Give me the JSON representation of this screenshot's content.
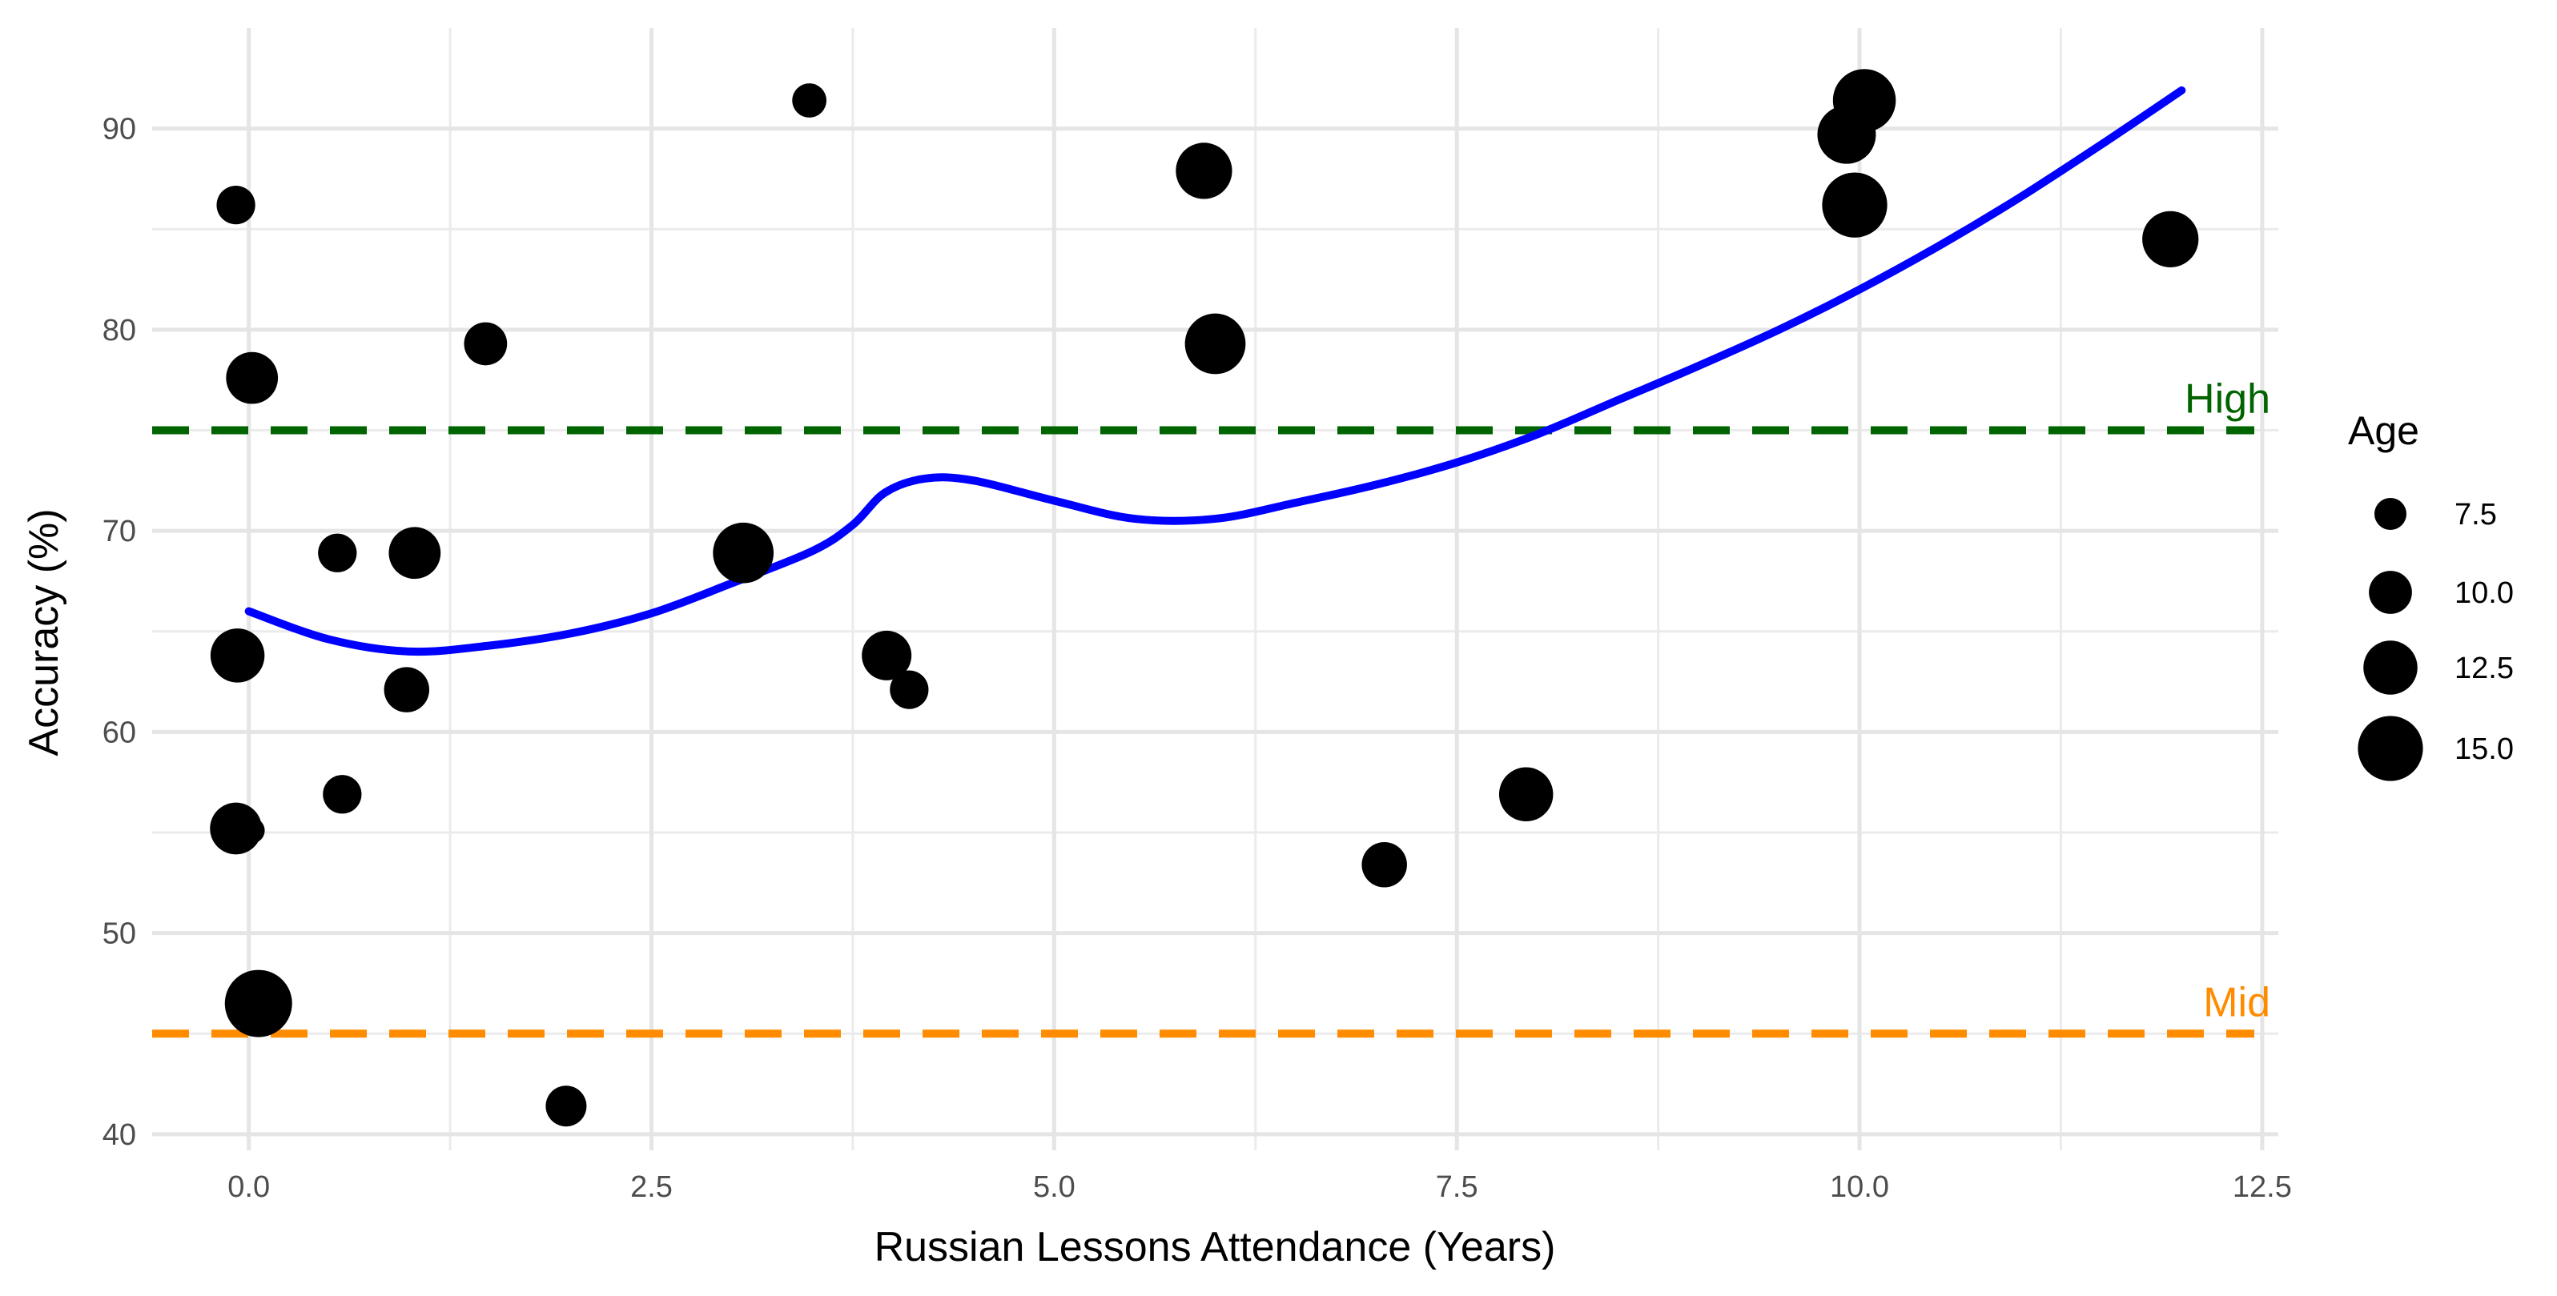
{
  "chart_data": {
    "type": "scatter",
    "title": "",
    "xlabel": "Russian Lessons Attendance (Years)",
    "ylabel": "Accuracy (%)",
    "xlim": [
      -0.6,
      12.6
    ],
    "ylim": [
      39.2,
      95
    ],
    "x_ticks": [
      0.0,
      2.5,
      5.0,
      7.5,
      10.0,
      12.5
    ],
    "x_tick_labels": [
      "0.0",
      "2.5",
      "5.0",
      "7.5",
      "10.0",
      "12.5"
    ],
    "y_ticks": [
      40,
      50,
      60,
      70,
      80,
      90
    ],
    "y_tick_labels": [
      "40",
      "50",
      "60",
      "70",
      "80",
      "90"
    ],
    "grid": true,
    "points": [
      {
        "x": -0.08,
        "y": 86.2,
        "age": 9
      },
      {
        "x": 0.02,
        "y": 77.6,
        "age": 12
      },
      {
        "x": 0.0,
        "y": 77.6,
        "age": 10
      },
      {
        "x": -0.07,
        "y": 63.8,
        "age": 12.5
      },
      {
        "x": -0.08,
        "y": 55.2,
        "age": 12
      },
      {
        "x": 0.02,
        "y": 55.1,
        "age": 6
      },
      {
        "x": 0.06,
        "y": 46.5,
        "age": 15.5
      },
      {
        "x": 0.55,
        "y": 68.9,
        "age": 9
      },
      {
        "x": 0.58,
        "y": 56.9,
        "age": 9
      },
      {
        "x": 0.98,
        "y": 62.1,
        "age": 10.5
      },
      {
        "x": 1.03,
        "y": 68.9,
        "age": 12
      },
      {
        "x": 1.47,
        "y": 79.3,
        "age": 10
      },
      {
        "x": 1.97,
        "y": 41.4,
        "age": 9.5
      },
      {
        "x": 3.07,
        "y": 68.9,
        "age": 14
      },
      {
        "x": 3.48,
        "y": 91.4,
        "age": 8
      },
      {
        "x": 3.96,
        "y": 63.8,
        "age": 11.5
      },
      {
        "x": 4.1,
        "y": 62.1,
        "age": 9
      },
      {
        "x": 5.93,
        "y": 87.9,
        "age": 13
      },
      {
        "x": 6.0,
        "y": 79.3,
        "age": 14
      },
      {
        "x": 7.05,
        "y": 53.4,
        "age": 10.5
      },
      {
        "x": 7.93,
        "y": 56.9,
        "age": 12.5
      },
      {
        "x": 9.92,
        "y": 89.7,
        "age": 13.5
      },
      {
        "x": 10.03,
        "y": 91.4,
        "age": 14.5
      },
      {
        "x": 9.97,
        "y": 86.2,
        "age": 15
      },
      {
        "x": 11.93,
        "y": 84.5,
        "age": 13
      }
    ],
    "smooth_line": {
      "color": "#0000ff",
      "x": [
        0.0,
        0.5,
        1.0,
        1.5,
        2.0,
        2.5,
        3.0,
        3.5,
        3.75,
        3.95,
        4.2,
        4.5,
        5.0,
        5.5,
        6.0,
        6.5,
        7.0,
        7.5,
        8.0,
        8.5,
        9.0,
        9.5,
        10.0,
        10.5,
        11.0,
        11.5,
        12.0
      ],
      "y": [
        66.0,
        64.6,
        64.0,
        64.3,
        64.9,
        65.9,
        67.4,
        69.0,
        70.3,
        71.9,
        72.6,
        72.5,
        71.5,
        70.6,
        70.6,
        71.4,
        72.3,
        73.4,
        74.8,
        76.5,
        78.2,
        80.0,
        82.0,
        84.2,
        86.6,
        89.2,
        91.9
      ]
    },
    "reference_lines": [
      {
        "label": "High",
        "y": 75,
        "color": "#006400",
        "style": "dashed"
      },
      {
        "label": "Mid",
        "y": 45,
        "color": "#ff8c00",
        "style": "dashed"
      }
    ],
    "size_legend": {
      "title": "Age",
      "entries": [
        {
          "label": "7.5",
          "value": 7.5
        },
        {
          "label": "10.0",
          "value": 10.0
        },
        {
          "label": "12.5",
          "value": 12.5
        },
        {
          "label": "15.0",
          "value": 15.0
        }
      ],
      "placement": "right"
    },
    "point_color": "#000000"
  }
}
